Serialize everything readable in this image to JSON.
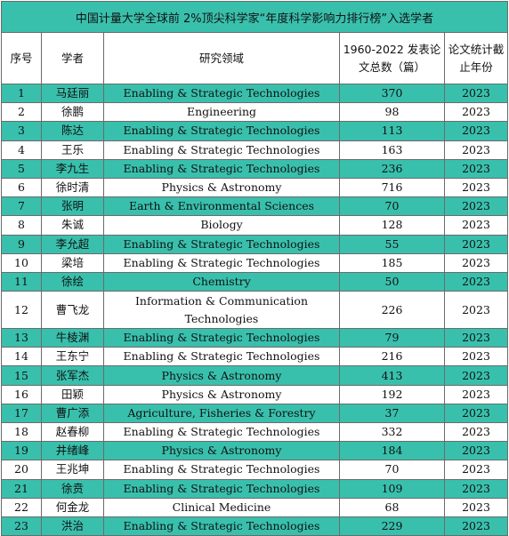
{
  "title": "中国计量大学全球前 2%顶尖科学家“年度科学影响力排行榜”入选学者",
  "headers": {
    "index": "序号",
    "scholar": "学者",
    "field": "研究领域",
    "papers": "1960-2022 发表论文总数（篇）",
    "year": "论文统计截止年份"
  },
  "rows": [
    {
      "no": "1",
      "name": "马廷丽",
      "field": "Enabling & Strategic Technologies",
      "papers": "370",
      "year": "2023"
    },
    {
      "no": "2",
      "name": "徐鹏",
      "field": "Engineering",
      "papers": "98",
      "year": "2023"
    },
    {
      "no": "3",
      "name": "陈达",
      "field": "Enabling & Strategic Technologies",
      "papers": "113",
      "year": "2023"
    },
    {
      "no": "4",
      "name": "王乐",
      "field": "Enabling & Strategic Technologies",
      "papers": "163",
      "year": "2023"
    },
    {
      "no": "5",
      "name": "李九生",
      "field": "Enabling & Strategic Technologies",
      "papers": "236",
      "year": "2023"
    },
    {
      "no": "6",
      "name": "徐时清",
      "field": "Physics & Astronomy",
      "papers": "716",
      "year": "2023"
    },
    {
      "no": "7",
      "name": "张明",
      "field": "Earth & Environmental Sciences",
      "papers": "70",
      "year": "2023"
    },
    {
      "no": "8",
      "name": "朱诚",
      "field": "Biology",
      "papers": "128",
      "year": "2023"
    },
    {
      "no": "9",
      "name": "李允超",
      "field": "Enabling & Strategic Technologies",
      "papers": "55",
      "year": "2023"
    },
    {
      "no": "10",
      "name": "梁培",
      "field": "Enabling & Strategic Technologies",
      "papers": "185",
      "year": "2023"
    },
    {
      "no": "11",
      "name": "徐绘",
      "field": "Chemistry",
      "papers": "50",
      "year": "2023"
    },
    {
      "no": "12",
      "name": "曹飞龙",
      "field": "Information & Communication Technologies",
      "papers": "226",
      "year": "2023"
    },
    {
      "no": "13",
      "name": "牛棱渊",
      "field": "Enabling & Strategic Technologies",
      "papers": "79",
      "year": "2023"
    },
    {
      "no": "14",
      "name": "王东宁",
      "field": "Enabling & Strategic Technologies",
      "papers": "216",
      "year": "2023"
    },
    {
      "no": "15",
      "name": "张军杰",
      "field": "Physics & Astronomy",
      "papers": "413",
      "year": "2023"
    },
    {
      "no": "16",
      "name": "田颖",
      "field": "Physics & Astronomy",
      "papers": "192",
      "year": "2023"
    },
    {
      "no": "17",
      "name": "曹广添",
      "field": "Agriculture, Fisheries & Forestry",
      "papers": "37",
      "year": "2023"
    },
    {
      "no": "18",
      "name": "赵春柳",
      "field": "Enabling & Strategic Technologies",
      "papers": "332",
      "year": "2023"
    },
    {
      "no": "19",
      "name": "井绪峰",
      "field": "Physics & Astronomy",
      "papers": "184",
      "year": "2023"
    },
    {
      "no": "20",
      "name": "王兆坤",
      "field": "Enabling & Strategic Technologies",
      "papers": "70",
      "year": "2023"
    },
    {
      "no": "21",
      "name": "徐贲",
      "field": "Enabling & Strategic Technologies",
      "papers": "109",
      "year": "2023"
    },
    {
      "no": "22",
      "name": "何金龙",
      "field": "Clinical Medicine",
      "papers": "68",
      "year": "2023"
    },
    {
      "no": "23",
      "name": "洪治",
      "field": "Enabling & Strategic Technologies",
      "papers": "229",
      "year": "2023"
    }
  ],
  "colors": {
    "teal": "#39c0ad",
    "white": "#ffffff",
    "border": "#6b6b6b"
  }
}
